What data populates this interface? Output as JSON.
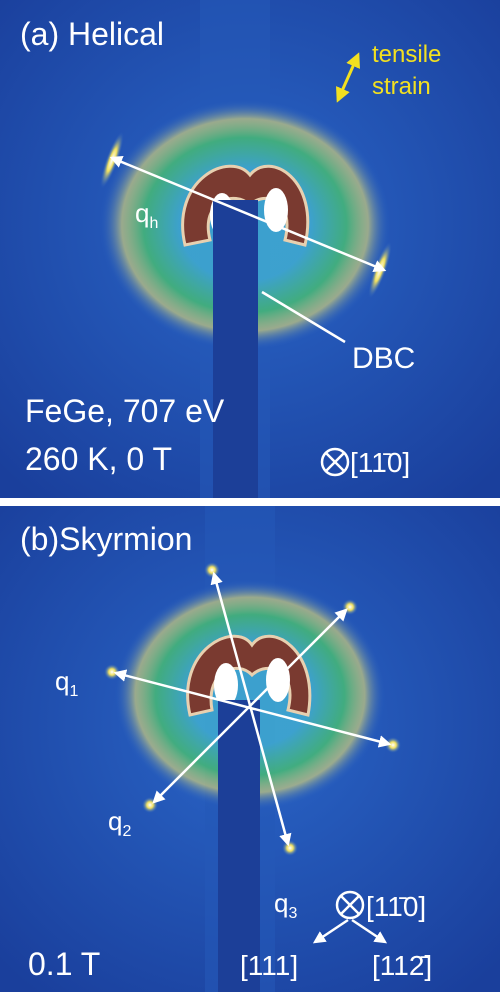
{
  "panel_a": {
    "title": "(a) Helical",
    "strain_label": [
      "tensile",
      "strain"
    ],
    "wavevector": {
      "base": "q",
      "sub": "h"
    },
    "beamstop_label": "DBC",
    "sample": "FeGe, 707 eV",
    "conditions": "260 K, 0 T",
    "axis_out": "[11̄0]"
  },
  "panel_b": {
    "title": "(b)Skyrmion",
    "wavevectors": [
      {
        "base": "q",
        "sub": "1"
      },
      {
        "base": "q",
        "sub": "2"
      },
      {
        "base": "q",
        "sub": "3"
      }
    ],
    "field": "0.1 T",
    "axis_out": "[11̄0]",
    "axis_left": "[111]",
    "axis_right": "[112̄]"
  }
}
